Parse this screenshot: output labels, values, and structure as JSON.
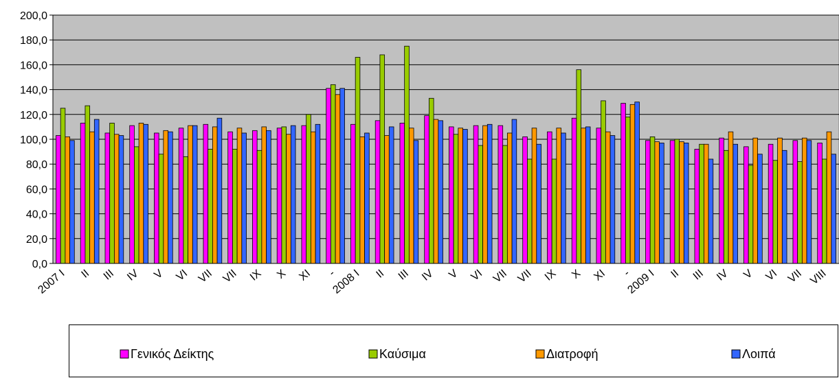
{
  "chart_data": {
    "type": "bar",
    "categories": [
      "2007 I",
      "II",
      "III",
      "IV",
      "V",
      "VI",
      "VII",
      "VII",
      "IX",
      "X",
      "XI",
      "-",
      "2008 I",
      "II",
      "III",
      "IV",
      "V",
      "VI",
      "VII",
      "VII",
      "IX",
      "X",
      "XI",
      "-",
      "2009 I",
      "II",
      "III",
      "IV",
      "V",
      "VI",
      "VII",
      "VIII"
    ],
    "series": [
      {
        "name": "Γενικός Δείκτης",
        "color": "#ff00ff",
        "values": [
          103,
          113,
          105,
          111,
          105,
          109,
          112,
          106,
          107,
          109,
          111,
          141,
          112,
          115,
          113,
          119,
          110,
          111,
          111,
          102,
          106,
          117,
          109,
          129,
          99,
          99,
          92,
          101,
          94,
          96,
          99,
          97
        ]
      },
      {
        "name": "Καύσιμα",
        "color": "#99cc00",
        "values": [
          125,
          127,
          113,
          94,
          88,
          86,
          92,
          92,
          91,
          110,
          120,
          144,
          166,
          168,
          175,
          133,
          104,
          95,
          95,
          84,
          84,
          156,
          131,
          118,
          102,
          100,
          96,
          91,
          79,
          83,
          82,
          84
        ]
      },
      {
        "name": "Διατροφή",
        "color": "#ff9900",
        "values": [
          102,
          106,
          104,
          113,
          107,
          111,
          110,
          109,
          110,
          104,
          106,
          136,
          102,
          103,
          109,
          116,
          109,
          111,
          105,
          109,
          109,
          109,
          106,
          128,
          98,
          98,
          96,
          106,
          101,
          101,
          101,
          106
        ]
      },
      {
        "name": "Λοιπά",
        "color": "#3366ff",
        "values": [
          99,
          116,
          103,
          112,
          106,
          111,
          117,
          105,
          107,
          111,
          112,
          141,
          105,
          110,
          99,
          115,
          108,
          112,
          116,
          96,
          105,
          110,
          103,
          130,
          97,
          97,
          84,
          96,
          88,
          91,
          99,
          88
        ]
      }
    ],
    "ylim": [
      0,
      200
    ],
    "yticks": [
      {
        "value": 0,
        "label": "0,0"
      },
      {
        "value": 20,
        "label": "20,0"
      },
      {
        "value": 40,
        "label": "40,0"
      },
      {
        "value": 60,
        "label": "60,0"
      },
      {
        "value": 80,
        "label": "80,0"
      },
      {
        "value": 100,
        "label": "100,0"
      },
      {
        "value": 120,
        "label": "120,0"
      },
      {
        "value": 140,
        "label": "140,0"
      },
      {
        "value": 160,
        "label": "160,0"
      },
      {
        "value": 180,
        "label": "180,0"
      },
      {
        "value": 200,
        "label": "200,0"
      }
    ],
    "grid": true,
    "background": "#c0c0c0",
    "legend": "bottom"
  }
}
